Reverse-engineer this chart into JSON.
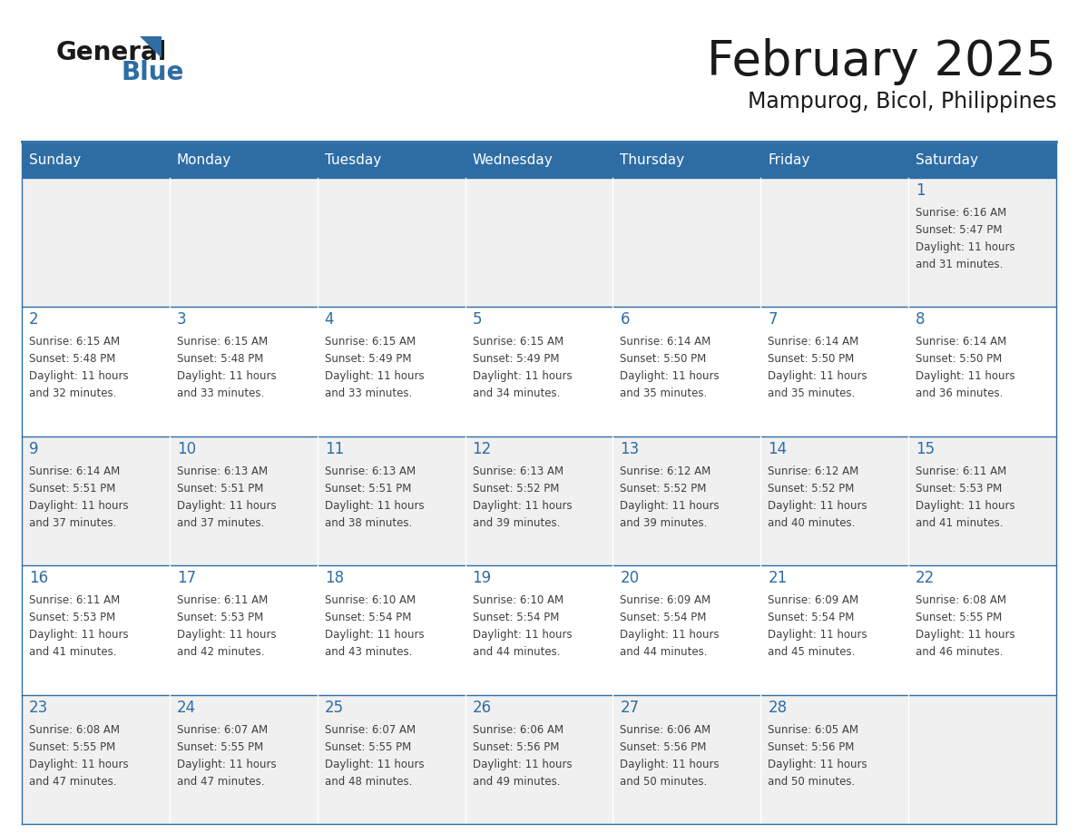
{
  "title": "February 2025",
  "subtitle": "Mampurog, Bicol, Philippines",
  "header_bg": "#2E6DA4",
  "header_text_color": "#FFFFFF",
  "cell_bg_light": "#F0F0F0",
  "cell_bg_white": "#FFFFFF",
  "day_number_color": "#2E6DA4",
  "info_text_color": "#404040",
  "border_color": "#2E6DA4",
  "days_of_week": [
    "Sunday",
    "Monday",
    "Tuesday",
    "Wednesday",
    "Thursday",
    "Friday",
    "Saturday"
  ],
  "calendar": [
    [
      null,
      null,
      null,
      null,
      null,
      null,
      {
        "day": "1",
        "sunrise": "6:16 AM",
        "sunset": "5:47 PM",
        "daylight": "11 hours",
        "daylight2": "and 31 minutes."
      }
    ],
    [
      {
        "day": "2",
        "sunrise": "6:15 AM",
        "sunset": "5:48 PM",
        "daylight": "11 hours",
        "daylight2": "and 32 minutes."
      },
      {
        "day": "3",
        "sunrise": "6:15 AM",
        "sunset": "5:48 PM",
        "daylight": "11 hours",
        "daylight2": "and 33 minutes."
      },
      {
        "day": "4",
        "sunrise": "6:15 AM",
        "sunset": "5:49 PM",
        "daylight": "11 hours",
        "daylight2": "and 33 minutes."
      },
      {
        "day": "5",
        "sunrise": "6:15 AM",
        "sunset": "5:49 PM",
        "daylight": "11 hours",
        "daylight2": "and 34 minutes."
      },
      {
        "day": "6",
        "sunrise": "6:14 AM",
        "sunset": "5:50 PM",
        "daylight": "11 hours",
        "daylight2": "and 35 minutes."
      },
      {
        "day": "7",
        "sunrise": "6:14 AM",
        "sunset": "5:50 PM",
        "daylight": "11 hours",
        "daylight2": "and 35 minutes."
      },
      {
        "day": "8",
        "sunrise": "6:14 AM",
        "sunset": "5:50 PM",
        "daylight": "11 hours",
        "daylight2": "and 36 minutes."
      }
    ],
    [
      {
        "day": "9",
        "sunrise": "6:14 AM",
        "sunset": "5:51 PM",
        "daylight": "11 hours",
        "daylight2": "and 37 minutes."
      },
      {
        "day": "10",
        "sunrise": "6:13 AM",
        "sunset": "5:51 PM",
        "daylight": "11 hours",
        "daylight2": "and 37 minutes."
      },
      {
        "day": "11",
        "sunrise": "6:13 AM",
        "sunset": "5:51 PM",
        "daylight": "11 hours",
        "daylight2": "and 38 minutes."
      },
      {
        "day": "12",
        "sunrise": "6:13 AM",
        "sunset": "5:52 PM",
        "daylight": "11 hours",
        "daylight2": "and 39 minutes."
      },
      {
        "day": "13",
        "sunrise": "6:12 AM",
        "sunset": "5:52 PM",
        "daylight": "11 hours",
        "daylight2": "and 39 minutes."
      },
      {
        "day": "14",
        "sunrise": "6:12 AM",
        "sunset": "5:52 PM",
        "daylight": "11 hours",
        "daylight2": "and 40 minutes."
      },
      {
        "day": "15",
        "sunrise": "6:11 AM",
        "sunset": "5:53 PM",
        "daylight": "11 hours",
        "daylight2": "and 41 minutes."
      }
    ],
    [
      {
        "day": "16",
        "sunrise": "6:11 AM",
        "sunset": "5:53 PM",
        "daylight": "11 hours",
        "daylight2": "and 41 minutes."
      },
      {
        "day": "17",
        "sunrise": "6:11 AM",
        "sunset": "5:53 PM",
        "daylight": "11 hours",
        "daylight2": "and 42 minutes."
      },
      {
        "day": "18",
        "sunrise": "6:10 AM",
        "sunset": "5:54 PM",
        "daylight": "11 hours",
        "daylight2": "and 43 minutes."
      },
      {
        "day": "19",
        "sunrise": "6:10 AM",
        "sunset": "5:54 PM",
        "daylight": "11 hours",
        "daylight2": "and 44 minutes."
      },
      {
        "day": "20",
        "sunrise": "6:09 AM",
        "sunset": "5:54 PM",
        "daylight": "11 hours",
        "daylight2": "and 44 minutes."
      },
      {
        "day": "21",
        "sunrise": "6:09 AM",
        "sunset": "5:54 PM",
        "daylight": "11 hours",
        "daylight2": "and 45 minutes."
      },
      {
        "day": "22",
        "sunrise": "6:08 AM",
        "sunset": "5:55 PM",
        "daylight": "11 hours",
        "daylight2": "and 46 minutes."
      }
    ],
    [
      {
        "day": "23",
        "sunrise": "6:08 AM",
        "sunset": "5:55 PM",
        "daylight": "11 hours",
        "daylight2": "and 47 minutes."
      },
      {
        "day": "24",
        "sunrise": "6:07 AM",
        "sunset": "5:55 PM",
        "daylight": "11 hours",
        "daylight2": "and 47 minutes."
      },
      {
        "day": "25",
        "sunrise": "6:07 AM",
        "sunset": "5:55 PM",
        "daylight": "11 hours",
        "daylight2": "and 48 minutes."
      },
      {
        "day": "26",
        "sunrise": "6:06 AM",
        "sunset": "5:56 PM",
        "daylight": "11 hours",
        "daylight2": "and 49 minutes."
      },
      {
        "day": "27",
        "sunrise": "6:06 AM",
        "sunset": "5:56 PM",
        "daylight": "11 hours",
        "daylight2": "and 50 minutes."
      },
      {
        "day": "28",
        "sunrise": "6:05 AM",
        "sunset": "5:56 PM",
        "daylight": "11 hours",
        "daylight2": "and 50 minutes."
      },
      null
    ]
  ],
  "logo_text1": "General",
  "logo_text2": "Blue"
}
